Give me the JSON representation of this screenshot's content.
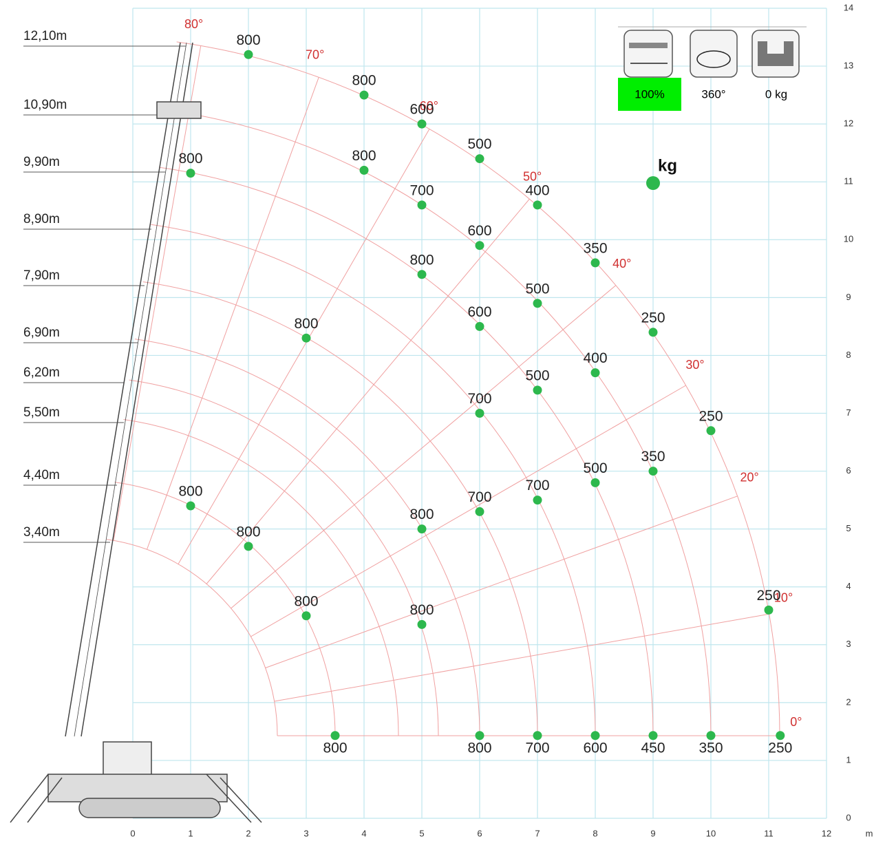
{
  "chart_data": {
    "type": "scatter",
    "x_label": "m",
    "xlim": [
      0,
      12
    ],
    "ylim": [
      0,
      14
    ],
    "xticks": [
      0,
      1,
      2,
      3,
      4,
      5,
      6,
      7,
      8,
      9,
      10,
      11,
      12
    ],
    "yticks": [
      0,
      1,
      2,
      3,
      4,
      5,
      6,
      7,
      8,
      9,
      10,
      11,
      12,
      13,
      14
    ],
    "grid": true,
    "color": "#2db84d",
    "x": [
      2,
      4,
      5,
      6,
      7,
      8,
      9,
      10,
      11,
      1,
      4,
      5,
      6,
      7,
      8,
      9,
      5,
      6,
      7,
      8,
      3,
      6,
      7,
      6,
      5,
      1,
      2,
      3,
      5,
      3.5,
      6,
      7,
      8,
      9,
      10,
      11.2
    ],
    "values": [
      13.2,
      12.5,
      12.0,
      11.4,
      10.6,
      9.6,
      8.4,
      6.7,
      3.6,
      11.15,
      11.2,
      10.6,
      9.9,
      8.9,
      7.7,
      6.0,
      9.4,
      8.5,
      7.4,
      5.8,
      8.3,
      7.0,
      5.5,
      5.3,
      5.0,
      5.4,
      4.7,
      3.5,
      3.35,
      1.43,
      1.43,
      1.43,
      1.43,
      1.43,
      1.43,
      1.43
    ],
    "loads": [
      800,
      800,
      600,
      500,
      400,
      350,
      250,
      250,
      250,
      800,
      800,
      700,
      600,
      500,
      400,
      350,
      800,
      600,
      500,
      500,
      800,
      700,
      700,
      700,
      800,
      800,
      800,
      800,
      800,
      800,
      800,
      700,
      600,
      450,
      350,
      250
    ],
    "legend_label": "kg",
    "boom_lengths": [
      "12,10m",
      "10,90m",
      "9,90m",
      "8,90m",
      "7,90m",
      "6,90m",
      "6,20m",
      "5,50m",
      "4,40m",
      "3,40m"
    ],
    "angles": [
      "80°",
      "70°",
      "60°",
      "50°",
      "40°",
      "30°",
      "20°",
      "10°",
      "0°"
    ],
    "panel": {
      "outrigger": "100%",
      "rotation": "360°",
      "counterweight": "0 kg"
    }
  }
}
